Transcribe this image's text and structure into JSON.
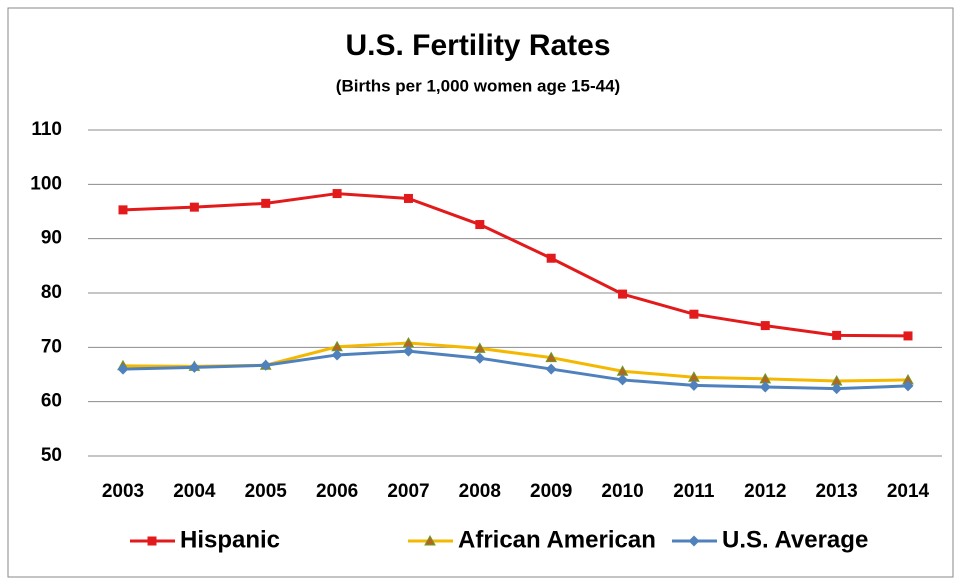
{
  "chart_data": {
    "type": "line",
    "title": "U.S. Fertility Rates",
    "subtitle": "(Births per 1,000 women age 15-44)",
    "categories": [
      "2003",
      "2004",
      "2005",
      "2006",
      "2007",
      "2008",
      "2009",
      "2010",
      "2011",
      "2012",
      "2013",
      "2014"
    ],
    "series": [
      {
        "name": "Hispanic",
        "color": "#e31a1c",
        "marker": "square",
        "values": [
          95.3,
          95.8,
          96.5,
          98.3,
          97.4,
          92.6,
          86.4,
          79.8,
          76.1,
          74.0,
          72.2,
          72.1
        ]
      },
      {
        "name": "African American",
        "color": "#f5b800",
        "marker": "triangle",
        "values": [
          66.6,
          66.5,
          66.7,
          70.1,
          70.8,
          69.8,
          68.1,
          65.6,
          64.5,
          64.2,
          63.8,
          64.0
        ]
      },
      {
        "name": "U.S. Average",
        "color": "#4f81bd",
        "marker": "diamond",
        "values": [
          66.0,
          66.3,
          66.7,
          68.6,
          69.3,
          68.0,
          66.0,
          64.0,
          63.0,
          62.7,
          62.4,
          62.9
        ]
      }
    ],
    "ylim": [
      50,
      110
    ],
    "yticks": [
      50,
      60,
      70,
      80,
      90,
      100,
      110
    ],
    "grid": true,
    "legend": "bottom"
  }
}
